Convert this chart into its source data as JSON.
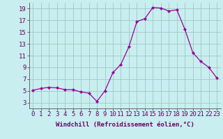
{
  "hours": [
    0,
    1,
    2,
    3,
    4,
    5,
    6,
    7,
    8,
    9,
    10,
    11,
    12,
    13,
    14,
    15,
    16,
    17,
    18,
    19,
    20,
    21,
    22,
    23
  ],
  "windchill": [
    5.1,
    5.4,
    5.6,
    5.5,
    5.2,
    5.2,
    4.8,
    4.6,
    3.2,
    5.0,
    8.1,
    9.5,
    12.5,
    16.8,
    17.3,
    19.2,
    19.1,
    18.6,
    18.8,
    15.5,
    11.5,
    10.0,
    9.0,
    7.2
  ],
  "line_color": "#990099",
  "marker": "D",
  "markersize": 2.2,
  "linewidth": 0.9,
  "bg_color": "#c8eef0",
  "grid_color": "#a0c8c0",
  "xlabel": "Windchill (Refroidissement éolien,°C)",
  "xlabel_fontsize": 6.5,
  "tick_fontsize": 6.5,
  "ylim": [
    2,
    20
  ],
  "yticks": [
    3,
    5,
    7,
    9,
    11,
    13,
    15,
    17,
    19
  ],
  "xticks": [
    0,
    1,
    2,
    3,
    4,
    5,
    6,
    7,
    8,
    9,
    10,
    11,
    12,
    13,
    14,
    15,
    16,
    17,
    18,
    19,
    20,
    21,
    22,
    23
  ]
}
